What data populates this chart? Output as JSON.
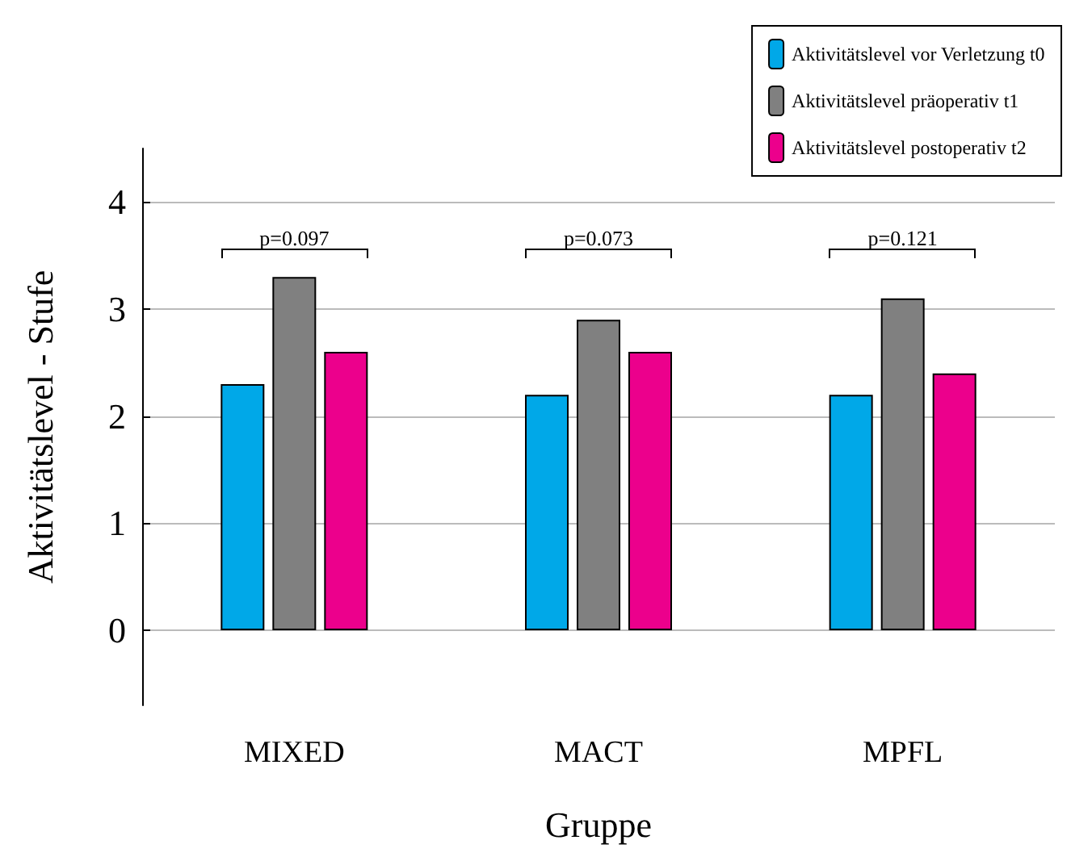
{
  "chart_data": {
    "type": "bar",
    "xlabel": "Gruppe",
    "ylabel": "Aktivitätslevel - Stufe",
    "categories": [
      "MIXED",
      "MACT",
      "MPFL"
    ],
    "series": [
      {
        "name": "Aktivitätslevel vor Verletzung t0",
        "color": "#00a8e8",
        "values": [
          2.3,
          2.2,
          2.2
        ]
      },
      {
        "name": "Aktivitätslevel präoperativ t1",
        "color": "#808080",
        "values": [
          3.3,
          2.9,
          3.1
        ]
      },
      {
        "name": "Aktivitätslevel postoperativ t2",
        "color": "#ec008c",
        "values": [
          2.6,
          2.6,
          2.4
        ]
      }
    ],
    "ylim": [
      -0.7,
      4.5
    ],
    "yticks": [
      0,
      1,
      2,
      3,
      4
    ],
    "grid": "y",
    "legend": "top right",
    "annotations": [
      "p=0.097",
      "p=0.073",
      "p=0.121"
    ]
  }
}
